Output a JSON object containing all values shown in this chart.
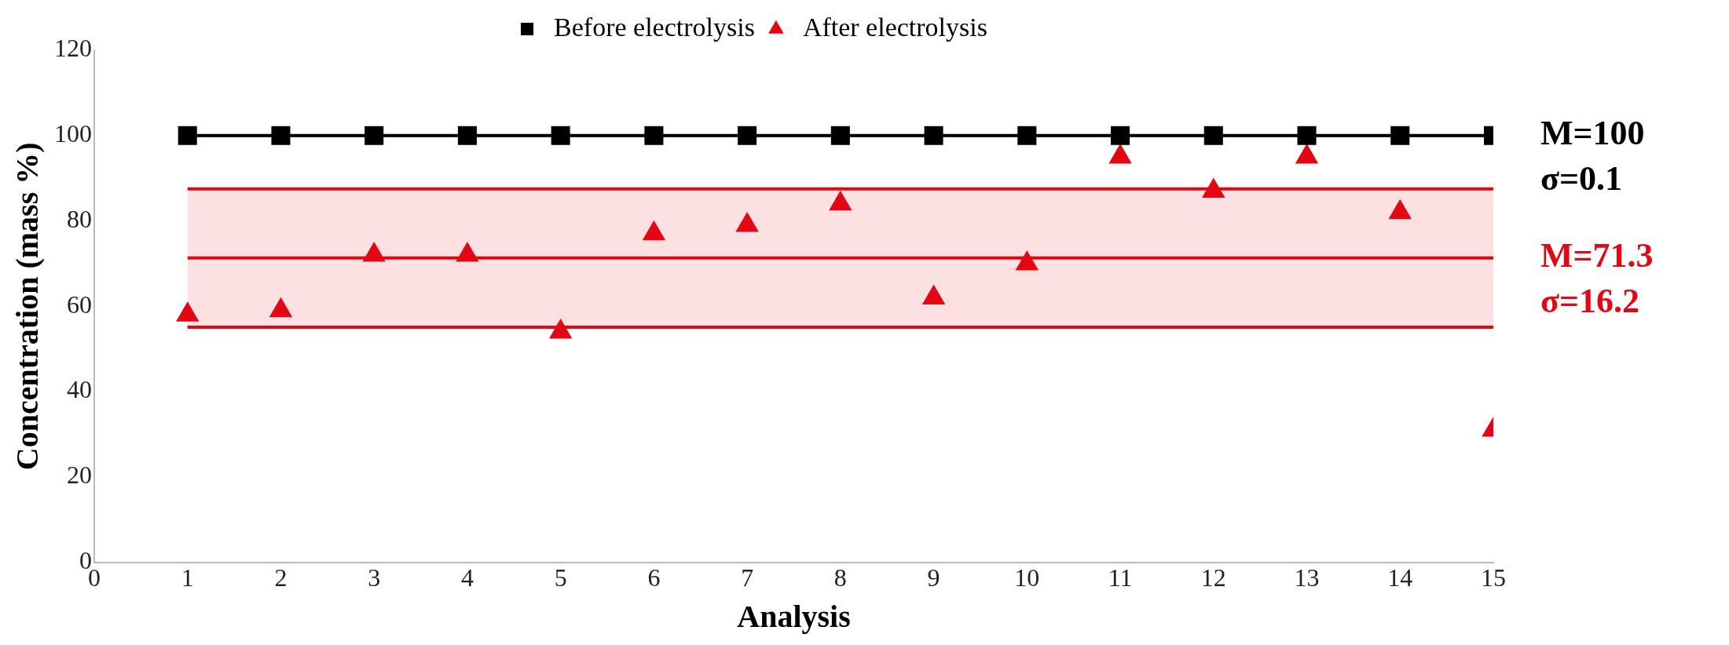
{
  "chart_data": {
    "type": "line",
    "xlabel": "Analysis",
    "ylabel": "Concentration (mass %)",
    "x": [
      1,
      2,
      3,
      4,
      5,
      6,
      7,
      8,
      9,
      10,
      11,
      12,
      13,
      14,
      15
    ],
    "series": [
      {
        "name": "Before electrolysis",
        "color": "#000000",
        "marker": "square",
        "line_style": "solid",
        "values": [
          100,
          100,
          100,
          100,
          100,
          100,
          100,
          100,
          100,
          100,
          100,
          100,
          100,
          100,
          100
        ]
      },
      {
        "name": "After electrolysis",
        "type": "scatter",
        "color": "#e30613",
        "marker": "triangle",
        "values": [
          58,
          59,
          72,
          72,
          54,
          77,
          79,
          84,
          62,
          70,
          95,
          87,
          95,
          82,
          31
        ]
      }
    ],
    "xlim": [
      0,
      15
    ],
    "xticks": [
      0,
      1,
      2,
      3,
      4,
      5,
      6,
      7,
      8,
      9,
      10,
      11,
      12,
      13,
      14,
      15
    ],
    "ylim": [
      0,
      120
    ],
    "yticks": [
      0,
      20,
      40,
      60,
      80,
      100,
      120
    ],
    "grid": false,
    "legend": "top",
    "annotations": [
      "σ=0.1"
    ],
    "ref_lines": [
      {
        "axis": "y",
        "value": 100,
        "label": "M=100",
        "color": "#000000"
      },
      {
        "axis": "y",
        "value": 87.5,
        "label": null,
        "color": "#e30613"
      },
      {
        "axis": "y",
        "value": 71.3,
        "label": "M=71.3",
        "color": "#e30613"
      },
      {
        "axis": "y",
        "value": 55.1,
        "label": null,
        "color": "#e30613"
      }
    ],
    "bands": [
      {
        "axis": "y",
        "from": 55.1,
        "to": 87.5,
        "label": "σ=16.2",
        "color": "#fde0e2"
      }
    ]
  }
}
